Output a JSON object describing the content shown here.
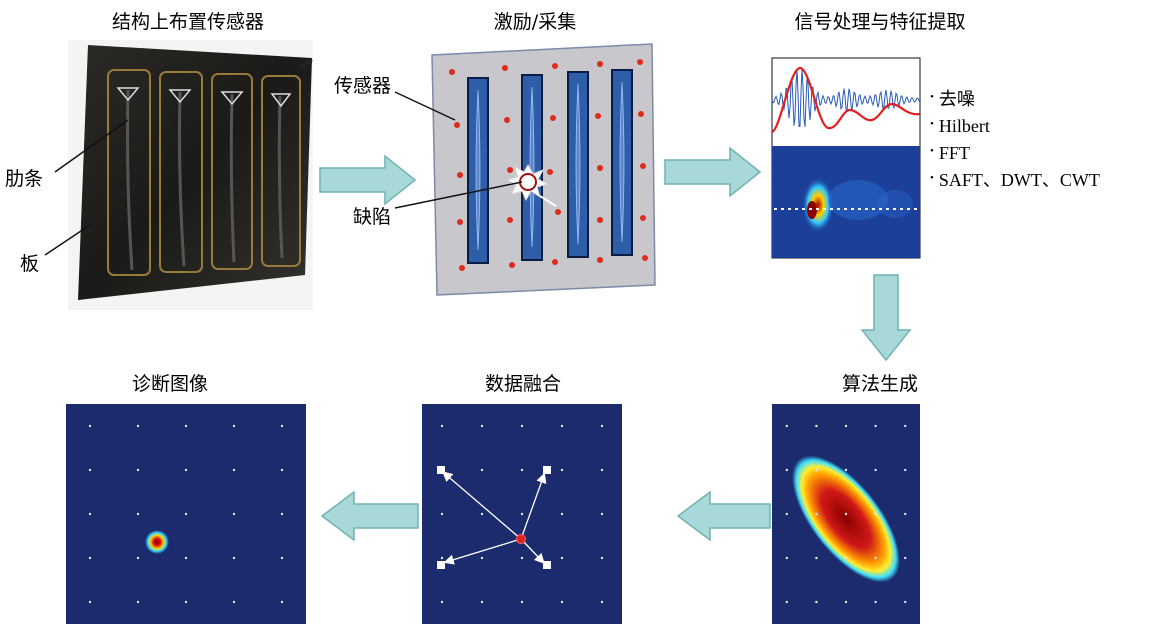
{
  "titles": {
    "sensor_layout": "结构上布置传感器",
    "excitation": "激励/采集",
    "signal_processing": "信号处理与特征提取",
    "algorithm": "算法生成",
    "data_fusion": "数据融合",
    "diagnosis": "诊断图像"
  },
  "labels": {
    "rib": "肋条",
    "plate": "板",
    "sensor": "传感器",
    "defect": "缺陷"
  },
  "processing_methods": [
    "去噪",
    "Hilbert",
    "FFT",
    "SAFT、DWT、CWT"
  ],
  "colors": {
    "arrow_fill": "#a9d8d8",
    "arrow_stroke": "#6fb3b3",
    "map_background": "#1c2a6e",
    "sensor_dot": "#e02a1a",
    "rib_blue": "#2e5ea8",
    "plate_gray": "#c8c8cc"
  }
}
